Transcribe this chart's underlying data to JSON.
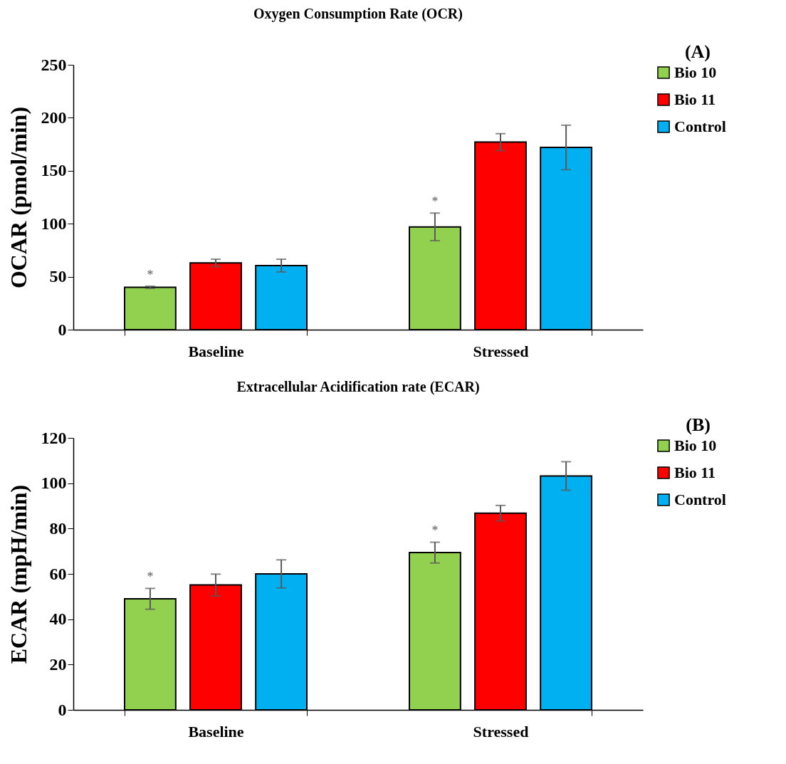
{
  "chart_data": [
    {
      "type": "bar",
      "title": "Oxygen Consumption Rate (OCR)",
      "ylabel": "OCAR (pmol/min)",
      "categories": [
        "Baseline",
        "Stressed"
      ],
      "series": [
        {
          "name": "Bio 10",
          "color": "#92d050",
          "values": [
            40,
            97
          ],
          "errors": [
            1,
            13
          ]
        },
        {
          "name": "Bio 11",
          "color": "#ff0000",
          "values": [
            63,
            177
          ],
          "errors": [
            3.5,
            8
          ]
        },
        {
          "name": "Control",
          "color": "#00b0f0",
          "values": [
            60.5,
            172
          ],
          "errors": [
            6,
            21
          ]
        }
      ],
      "ylim": [
        0,
        250
      ],
      "yticks": [
        0,
        50,
        100,
        150,
        200,
        250
      ],
      "grid": false,
      "legend": "right",
      "annotations": [
        "(A)",
        "*",
        "*"
      ]
    },
    {
      "type": "bar",
      "title": "Extracellular Acidification rate (ECAR)",
      "ylabel": "ECAR (mpH/min)",
      "categories": [
        "Baseline",
        "Stressed"
      ],
      "series": [
        {
          "name": "Bio 10",
          "color": "#92d050",
          "values": [
            49,
            69.4
          ],
          "errors": [
            4.6,
            4.6
          ]
        },
        {
          "name": "Bio 11",
          "color": "#ff0000",
          "values": [
            55.1,
            86.8
          ],
          "errors": [
            4.8,
            3.4
          ]
        },
        {
          "name": "Control",
          "color": "#00b0f0",
          "values": [
            60,
            103.2
          ],
          "errors": [
            6.2,
            6.3
          ]
        }
      ],
      "ylim": [
        0,
        120
      ],
      "yticks": [
        0,
        20,
        40,
        60,
        80,
        100,
        120
      ],
      "grid": false,
      "legend": "right",
      "annotations": [
        "(B)",
        "*",
        "*"
      ]
    }
  ]
}
